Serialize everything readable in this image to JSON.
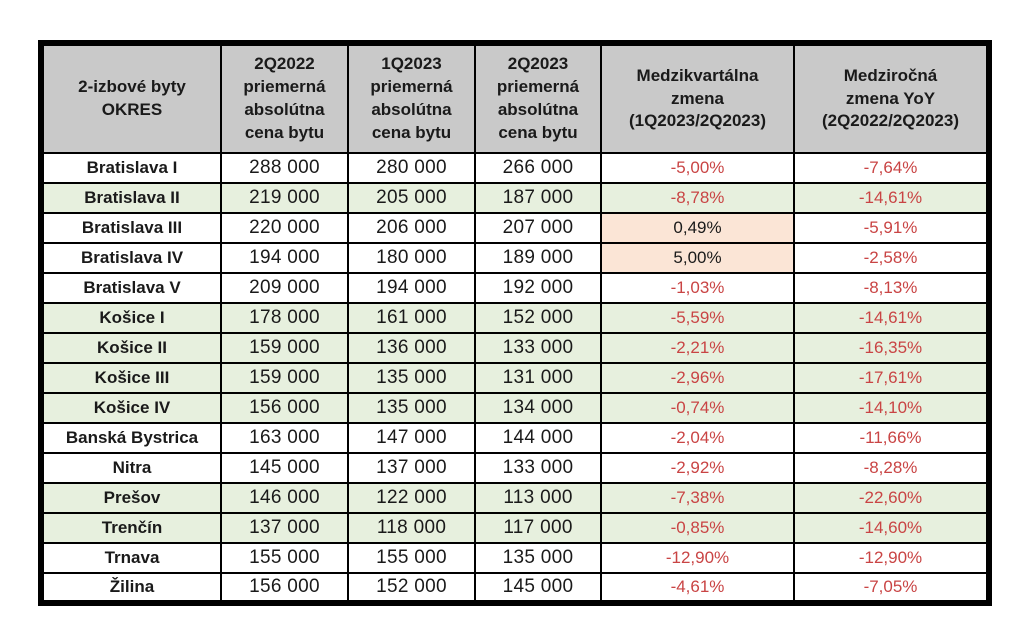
{
  "colors": {
    "header_bg": "#c9c9c9",
    "green_row_bg": "#e7f0de",
    "orange_cell_bg": "#fbe5d6",
    "negative_pct_text": "#c94444",
    "positive_pct_text": "#1a1a1a",
    "border": "#000000"
  },
  "table": {
    "headers": [
      "2-izbové byty\nOKRES",
      "2Q2022\npriemerná\nabsolútna\ncena bytu",
      "1Q2023\npriemerná\nabsolútna\ncena bytu",
      "2Q2023\npriemerná\nabsolútna\ncena bytu",
      "Medzikvartálna\nzmena\n(1Q2023/2Q2023)",
      "Medziročná\nzmena YoY\n(2Q2022/2Q2023)"
    ],
    "rows": [
      {
        "okres": "Bratislava I",
        "p2q2022": "288 000",
        "p1q2023": "280 000",
        "p2q2023": "266 000",
        "qoq": "-5,00%",
        "yoy": "-7,64%",
        "row_bg": "white",
        "qoq_bg": "none",
        "qoq_negative": true,
        "yoy_negative": true
      },
      {
        "okres": "Bratislava II",
        "p2q2022": "219 000",
        "p1q2023": "205 000",
        "p2q2023": "187 000",
        "qoq": "-8,78%",
        "yoy": "-14,61%",
        "row_bg": "green",
        "qoq_bg": "none",
        "qoq_negative": true,
        "yoy_negative": true
      },
      {
        "okres": "Bratislava III",
        "p2q2022": "220 000",
        "p1q2023": "206 000",
        "p2q2023": "207 000",
        "qoq": "0,49%",
        "yoy": "-5,91%",
        "row_bg": "white",
        "qoq_bg": "orange",
        "qoq_negative": false,
        "yoy_negative": true
      },
      {
        "okres": "Bratislava IV",
        "p2q2022": "194 000",
        "p1q2023": "180 000",
        "p2q2023": "189 000",
        "qoq": "5,00%",
        "yoy": "-2,58%",
        "row_bg": "white",
        "qoq_bg": "orange",
        "qoq_negative": false,
        "yoy_negative": true
      },
      {
        "okres": "Bratislava V",
        "p2q2022": "209 000",
        "p1q2023": "194 000",
        "p2q2023": "192 000",
        "qoq": "-1,03%",
        "yoy": "-8,13%",
        "row_bg": "white",
        "qoq_bg": "none",
        "qoq_negative": true,
        "yoy_negative": true
      },
      {
        "okres": "Košice I",
        "p2q2022": "178 000",
        "p1q2023": "161 000",
        "p2q2023": "152 000",
        "qoq": "-5,59%",
        "yoy": "-14,61%",
        "row_bg": "green",
        "qoq_bg": "none",
        "qoq_negative": true,
        "yoy_negative": true
      },
      {
        "okres": "Košice II",
        "p2q2022": "159 000",
        "p1q2023": "136 000",
        "p2q2023": "133 000",
        "qoq": "-2,21%",
        "yoy": "-16,35%",
        "row_bg": "green",
        "qoq_bg": "none",
        "qoq_negative": true,
        "yoy_negative": true
      },
      {
        "okres": "Košice III",
        "p2q2022": "159 000",
        "p1q2023": "135 000",
        "p2q2023": "131 000",
        "qoq": "-2,96%",
        "yoy": "-17,61%",
        "row_bg": "green",
        "qoq_bg": "none",
        "qoq_negative": true,
        "yoy_negative": true
      },
      {
        "okres": "Košice IV",
        "p2q2022": "156 000",
        "p1q2023": "135 000",
        "p2q2023": "134 000",
        "qoq": "-0,74%",
        "yoy": "-14,10%",
        "row_bg": "green",
        "qoq_bg": "none",
        "qoq_negative": true,
        "yoy_negative": true
      },
      {
        "okres": "Banská Bystrica",
        "p2q2022": "163 000",
        "p1q2023": "147 000",
        "p2q2023": "144 000",
        "qoq": "-2,04%",
        "yoy": "-11,66%",
        "row_bg": "white",
        "qoq_bg": "none",
        "qoq_negative": true,
        "yoy_negative": true
      },
      {
        "okres": "Nitra",
        "p2q2022": "145 000",
        "p1q2023": "137 000",
        "p2q2023": "133 000",
        "qoq": "-2,92%",
        "yoy": "-8,28%",
        "row_bg": "white",
        "qoq_bg": "none",
        "qoq_negative": true,
        "yoy_negative": true
      },
      {
        "okres": "Prešov",
        "p2q2022": "146 000",
        "p1q2023": "122 000",
        "p2q2023": "113 000",
        "qoq": "-7,38%",
        "yoy": "-22,60%",
        "row_bg": "green",
        "qoq_bg": "none",
        "qoq_negative": true,
        "yoy_negative": true
      },
      {
        "okres": "Trenčín",
        "p2q2022": "137 000",
        "p1q2023": "118 000",
        "p2q2023": "117 000",
        "qoq": "-0,85%",
        "yoy": "-14,60%",
        "row_bg": "green",
        "qoq_bg": "none",
        "qoq_negative": true,
        "yoy_negative": true
      },
      {
        "okres": "Trnava",
        "p2q2022": "155 000",
        "p1q2023": "155 000",
        "p2q2023": "135 000",
        "qoq": "-12,90%",
        "yoy": "-12,90%",
        "row_bg": "white",
        "qoq_bg": "none",
        "qoq_negative": true,
        "yoy_negative": true
      },
      {
        "okres": "Žilina",
        "p2q2022": "156 000",
        "p1q2023": "152 000",
        "p2q2023": "145 000",
        "qoq": "-4,61%",
        "yoy": "-7,05%",
        "row_bg": "white",
        "qoq_bg": "none",
        "qoq_negative": true,
        "yoy_negative": true
      }
    ]
  },
  "chart_data": {
    "type": "table",
    "title": "2-izbové byty OKRES",
    "columns": [
      "2-izbové byty OKRES",
      "2Q2022 priemerná absolútna cena bytu",
      "1Q2023 priemerná absolútna cena bytu",
      "2Q2023 priemerná absolútna cena bytu",
      "Medzikvartálna zmena (1Q2023/2Q2023)",
      "Medziročná zmena YoY (2Q2022/2Q2023)"
    ],
    "rows": [
      [
        "Bratislava I",
        288000,
        280000,
        266000,
        -5.0,
        -7.64
      ],
      [
        "Bratislava II",
        219000,
        205000,
        187000,
        -8.78,
        -14.61
      ],
      [
        "Bratislava III",
        220000,
        206000,
        207000,
        0.49,
        -5.91
      ],
      [
        "Bratislava IV",
        194000,
        180000,
        189000,
        5.0,
        -2.58
      ],
      [
        "Bratislava V",
        209000,
        194000,
        192000,
        -1.03,
        -8.13
      ],
      [
        "Košice I",
        178000,
        161000,
        152000,
        -5.59,
        -14.61
      ],
      [
        "Košice II",
        159000,
        136000,
        133000,
        -2.21,
        -16.35
      ],
      [
        "Košice III",
        159000,
        135000,
        131000,
        -2.96,
        -17.61
      ],
      [
        "Košice IV",
        156000,
        135000,
        134000,
        -0.74,
        -14.1
      ],
      [
        "Banská Bystrica",
        163000,
        147000,
        144000,
        -2.04,
        -11.66
      ],
      [
        "Nitra",
        145000,
        137000,
        133000,
        -2.92,
        -8.28
      ],
      [
        "Prešov",
        146000,
        122000,
        113000,
        -7.38,
        -22.6
      ],
      [
        "Trenčín",
        137000,
        118000,
        117000,
        -0.85,
        -14.6
      ],
      [
        "Trnava",
        155000,
        155000,
        135000,
        -12.9,
        -12.9
      ],
      [
        "Žilina",
        156000,
        152000,
        145000,
        -4.61,
        -7.05
      ]
    ],
    "units": {
      "prices": "EUR",
      "changes": "percent"
    },
    "notes_from_pixels": "negative changes shown in red; positive quarterly changes highlighted with peach cell background; alternating white/green row highlight"
  }
}
